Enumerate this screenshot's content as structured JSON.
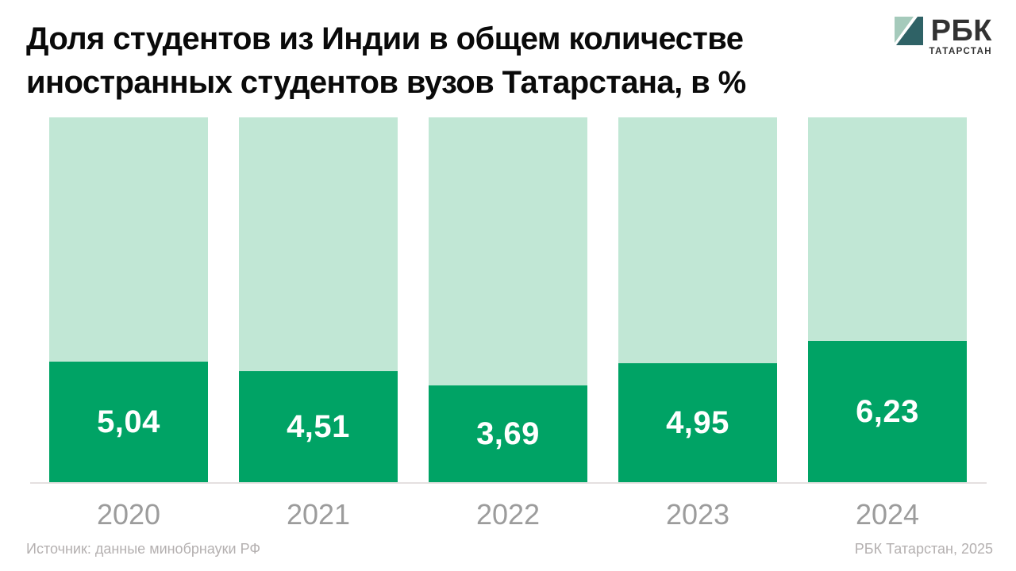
{
  "title": {
    "line1": "Доля студентов из Индии в общем количестве",
    "line2": "иностранных студентов вузов Татарстана, в %"
  },
  "logo": {
    "brand": "РБК",
    "region": "ТАТАРСТАН",
    "square_light": "#a5cabb",
    "square_dark": "#2f6266"
  },
  "chart_data": {
    "type": "bar",
    "title": "Доля студентов из Индии в общем количестве иностранных студентов вузов Татарстана, в %",
    "unit": "%",
    "categories": [
      "2020",
      "2021",
      "2022",
      "2023",
      "2024"
    ],
    "values": [
      5.04,
      4.51,
      3.69,
      4.95,
      6.23
    ],
    "value_labels": [
      "5,04",
      "4,51",
      "3,69",
      "4,95",
      "6,23"
    ],
    "xlabel": "",
    "ylabel": "",
    "grid": false,
    "legend": false,
    "value_label_position": "inside-bottom",
    "bar_color": "#00a365",
    "bar_track_color": "#c1e7d5",
    "value_label_color": "#ffffff",
    "axis_tick_color": "#9c9c9c"
  },
  "footer": {
    "source": "Источник: данные минобрнауки РФ",
    "credit": "РБК Татарстан, 2025"
  }
}
